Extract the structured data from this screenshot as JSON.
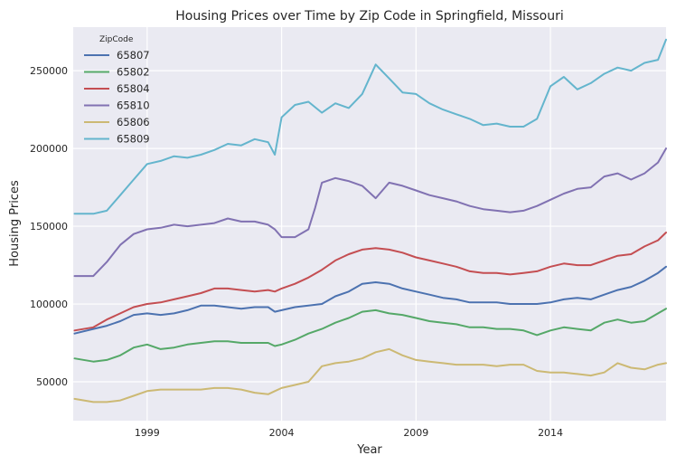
{
  "chart_data": {
    "type": "line",
    "title": "Housing Prices over Time by Zip Code in Springfield, Missouri",
    "xlabel": "Year",
    "ylabel": "Housing Prices",
    "xlim": [
      1996.25,
      2018.3
    ],
    "ylim": [
      25000,
      278000
    ],
    "xticks": [
      1999,
      2004,
      2009,
      2014
    ],
    "yticks": [
      50000,
      100000,
      150000,
      200000,
      250000
    ],
    "grid": true,
    "legend": {
      "title": "ZipCode",
      "position": "top-left"
    },
    "series": [
      {
        "name": "65807",
        "color": "#4C72B0",
        "x": [
          1996.3,
          1997,
          1997.5,
          1998,
          1998.5,
          1999,
          1999.5,
          2000,
          2000.5,
          2001,
          2001.5,
          2002,
          2002.5,
          2003,
          2003.5,
          2003.75,
          2004,
          2004.5,
          2005,
          2005.5,
          2006,
          2006.5,
          2007,
          2007.5,
          2008,
          2008.5,
          2009,
          2009.5,
          2010,
          2010.5,
          2011,
          2011.5,
          2012,
          2012.5,
          2013,
          2013.5,
          2014,
          2014.5,
          2015,
          2015.5,
          2016,
          2016.5,
          2017,
          2017.5,
          2018,
          2018.3
        ],
        "values": [
          81000,
          84000,
          86000,
          89000,
          93000,
          94000,
          93000,
          94000,
          96000,
          99000,
          99000,
          98000,
          97000,
          98000,
          98000,
          95000,
          96000,
          98000,
          99000,
          100000,
          105000,
          108000,
          113000,
          114000,
          113000,
          110000,
          108000,
          106000,
          104000,
          103000,
          101000,
          101000,
          101000,
          100000,
          100000,
          100000,
          101000,
          103000,
          104000,
          103000,
          106000,
          109000,
          111000,
          115000,
          120000,
          124000
        ]
      },
      {
        "name": "65802",
        "color": "#55A868",
        "x": [
          1996.3,
          1997,
          1997.5,
          1998,
          1998.5,
          1999,
          1999.5,
          2000,
          2000.5,
          2001,
          2001.5,
          2002,
          2002.5,
          2003,
          2003.5,
          2003.75,
          2004,
          2004.5,
          2005,
          2005.5,
          2006,
          2006.5,
          2007,
          2007.5,
          2008,
          2008.5,
          2009,
          2009.5,
          2010,
          2010.5,
          2011,
          2011.5,
          2012,
          2012.5,
          2013,
          2013.5,
          2014,
          2014.5,
          2015,
          2015.5,
          2016,
          2016.5,
          2017,
          2017.5,
          2018,
          2018.3
        ],
        "values": [
          65000,
          63000,
          64000,
          67000,
          72000,
          74000,
          71000,
          72000,
          74000,
          75000,
          76000,
          76000,
          75000,
          75000,
          75000,
          73000,
          74000,
          77000,
          81000,
          84000,
          88000,
          91000,
          95000,
          96000,
          94000,
          93000,
          91000,
          89000,
          88000,
          87000,
          85000,
          85000,
          84000,
          84000,
          83000,
          80000,
          83000,
          85000,
          84000,
          83000,
          88000,
          90000,
          88000,
          89000,
          94000,
          97000
        ]
      },
      {
        "name": "65804",
        "color": "#C44E52",
        "x": [
          1996.3,
          1997,
          1997.5,
          1998,
          1998.5,
          1999,
          1999.5,
          2000,
          2000.5,
          2001,
          2001.5,
          2002,
          2002.5,
          2003,
          2003.5,
          2003.75,
          2004,
          2004.5,
          2005,
          2005.5,
          2006,
          2006.5,
          2007,
          2007.5,
          2008,
          2008.5,
          2009,
          2009.5,
          2010,
          2010.5,
          2011,
          2011.5,
          2012,
          2012.5,
          2013,
          2013.5,
          2014,
          2014.5,
          2015,
          2015.5,
          2016,
          2016.5,
          2017,
          2017.5,
          2018,
          2018.3
        ],
        "values": [
          83000,
          85000,
          90000,
          94000,
          98000,
          100000,
          101000,
          103000,
          105000,
          107000,
          110000,
          110000,
          109000,
          108000,
          109000,
          108000,
          110000,
          113000,
          117000,
          122000,
          128000,
          132000,
          135000,
          136000,
          135000,
          133000,
          130000,
          128000,
          126000,
          124000,
          121000,
          120000,
          120000,
          119000,
          120000,
          121000,
          124000,
          126000,
          125000,
          125000,
          128000,
          131000,
          132000,
          137000,
          141000,
          146000
        ]
      },
      {
        "name": "65810",
        "color": "#8172B2",
        "x": [
          1996.3,
          1997,
          1997.5,
          1998,
          1998.5,
          1999,
          1999.5,
          2000,
          2000.5,
          2001,
          2001.5,
          2002,
          2002.5,
          2003,
          2003.5,
          2003.75,
          2004,
          2004.5,
          2005,
          2005.25,
          2005.5,
          2006,
          2006.5,
          2007,
          2007.5,
          2008,
          2008.5,
          2009,
          2009.5,
          2010,
          2010.5,
          2011,
          2011.5,
          2012,
          2012.5,
          2013,
          2013.5,
          2014,
          2014.5,
          2015,
          2015.5,
          2016,
          2016.5,
          2017,
          2017.5,
          2018,
          2018.3
        ],
        "values": [
          118000,
          118000,
          127000,
          138000,
          145000,
          148000,
          149000,
          151000,
          150000,
          151000,
          152000,
          155000,
          153000,
          153000,
          151000,
          148000,
          143000,
          143000,
          148000,
          162000,
          178000,
          181000,
          179000,
          176000,
          168000,
          178000,
          176000,
          173000,
          170000,
          168000,
          166000,
          163000,
          161000,
          160000,
          159000,
          160000,
          163000,
          167000,
          171000,
          174000,
          175000,
          182000,
          184000,
          180000,
          184000,
          191000,
          200000
        ]
      },
      {
        "name": "65806",
        "color": "#CCB974",
        "x": [
          1996.3,
          1997,
          1997.5,
          1998,
          1998.5,
          1999,
          1999.5,
          2000,
          2000.5,
          2001,
          2001.5,
          2002,
          2002.5,
          2003,
          2003.5,
          2003.75,
          2004,
          2004.5,
          2005,
          2005.25,
          2005.5,
          2006,
          2006.5,
          2007,
          2007.5,
          2008,
          2008.5,
          2009,
          2009.5,
          2010,
          2010.5,
          2011,
          2011.5,
          2012,
          2012.5,
          2013,
          2013.5,
          2014,
          2014.5,
          2015,
          2015.5,
          2016,
          2016.5,
          2017,
          2017.5,
          2018,
          2018.3
        ],
        "values": [
          39000,
          37000,
          37000,
          38000,
          41000,
          44000,
          45000,
          45000,
          45000,
          45000,
          46000,
          46000,
          45000,
          43000,
          42000,
          44000,
          46000,
          48000,
          50000,
          55000,
          60000,
          62000,
          63000,
          65000,
          69000,
          71000,
          67000,
          64000,
          63000,
          62000,
          61000,
          61000,
          61000,
          60000,
          61000,
          61000,
          57000,
          56000,
          56000,
          55000,
          54000,
          56000,
          62000,
          59000,
          58000,
          61000,
          62000
        ]
      },
      {
        "name": "65809",
        "color": "#64B5CD",
        "x": [
          1996.3,
          1997,
          1997.5,
          1998,
          1998.5,
          1999,
          1999.5,
          2000,
          2000.5,
          2001,
          2001.5,
          2002,
          2002.5,
          2003,
          2003.5,
          2003.75,
          2004,
          2004.5,
          2005,
          2005.5,
          2006,
          2006.5,
          2007,
          2007.5,
          2008,
          2008.5,
          2009,
          2009.5,
          2010,
          2010.5,
          2011,
          2011.5,
          2012,
          2012.5,
          2013,
          2013.5,
          2014,
          2014.5,
          2015,
          2015.5,
          2016,
          2016.5,
          2017,
          2017.5,
          2018,
          2018.3
        ],
        "values": [
          158000,
          158000,
          160000,
          170000,
          180000,
          190000,
          192000,
          195000,
          194000,
          196000,
          199000,
          203000,
          202000,
          206000,
          204000,
          196000,
          220000,
          228000,
          230000,
          223000,
          229000,
          226000,
          235000,
          254000,
          245000,
          236000,
          235000,
          229000,
          225000,
          222000,
          219000,
          215000,
          216000,
          214000,
          214000,
          219000,
          240000,
          246000,
          238000,
          242000,
          248000,
          252000,
          250000,
          255000,
          257000,
          270000
        ]
      }
    ]
  }
}
